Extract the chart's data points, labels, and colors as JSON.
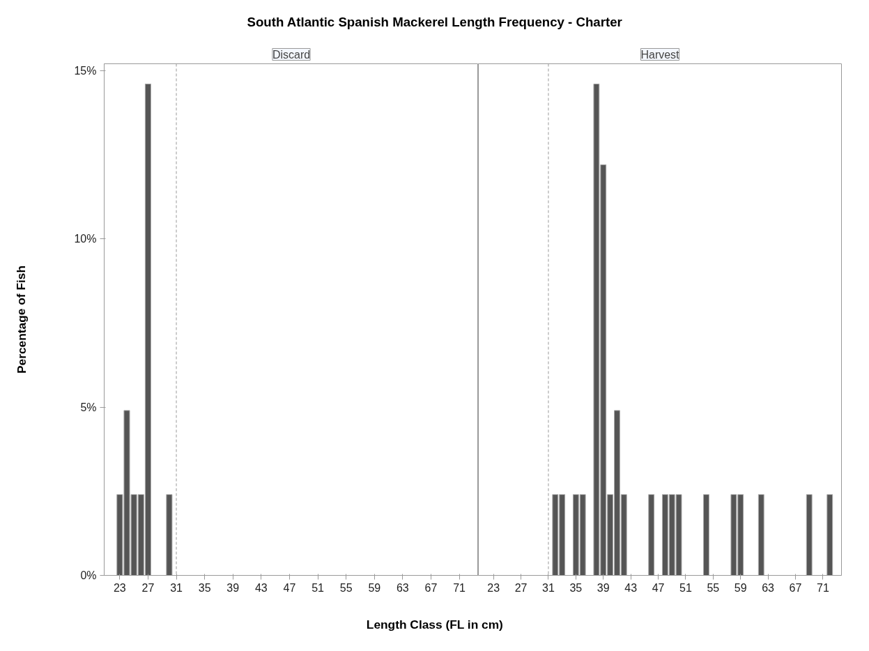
{
  "chart_data": [
    {
      "type": "bar",
      "title": "South Atlantic Spanish Mackerel Length Frequency - Charter",
      "subtitle": "Discard",
      "ylabel": "Percentage of Fish",
      "x": [
        23,
        24,
        25,
        26,
        27,
        30
      ],
      "series": [
        {
          "color": "#555555",
          "values": [
            2.4,
            4.9,
            2.4,
            2.4,
            14.6,
            2.4
          ]
        }
      ],
      "xlim": [
        20.8,
        73.7
      ],
      "xticks": [
        23,
        27,
        31,
        35,
        39,
        43,
        47,
        51,
        55,
        59,
        63,
        67,
        71
      ],
      "ylim": [
        0,
        15.2
      ],
      "yticks": [
        {
          "value": 0,
          "label": "0%"
        },
        {
          "value": 5,
          "label": "5%"
        },
        {
          "value": 10,
          "label": "10%"
        },
        {
          "value": 15,
          "label": "15%"
        }
      ],
      "ref_lines": [
        {
          "axis": "x",
          "value": 31,
          "color": "#999999",
          "line_style": "dashed"
        }
      ],
      "grid": false
    },
    {
      "type": "bar",
      "subtitle": "Harvest",
      "xlabel": "Length Class (FL in cm)",
      "x": [
        32,
        33,
        35,
        36,
        38,
        39,
        40,
        41,
        42,
        46,
        48,
        49,
        50,
        54,
        58,
        59,
        62,
        69,
        72
      ],
      "series": [
        {
          "color": "#555555",
          "values": [
            2.4,
            2.4,
            2.4,
            2.4,
            14.6,
            12.2,
            2.4,
            4.9,
            2.4,
            2.4,
            2.4,
            2.4,
            2.4,
            2.4,
            2.4,
            2.4,
            2.4,
            2.4,
            2.4
          ]
        }
      ],
      "xlim": [
        20.8,
        73.7
      ],
      "xticks": [
        23,
        27,
        31,
        35,
        39,
        43,
        47,
        51,
        55,
        59,
        63,
        67,
        71
      ],
      "ylim": [
        0,
        15.2
      ],
      "ref_lines": [
        {
          "axis": "x",
          "value": 31,
          "color": "#999999",
          "line_style": "dashed"
        }
      ],
      "grid": false,
      "tick_labels": "x"
    }
  ]
}
